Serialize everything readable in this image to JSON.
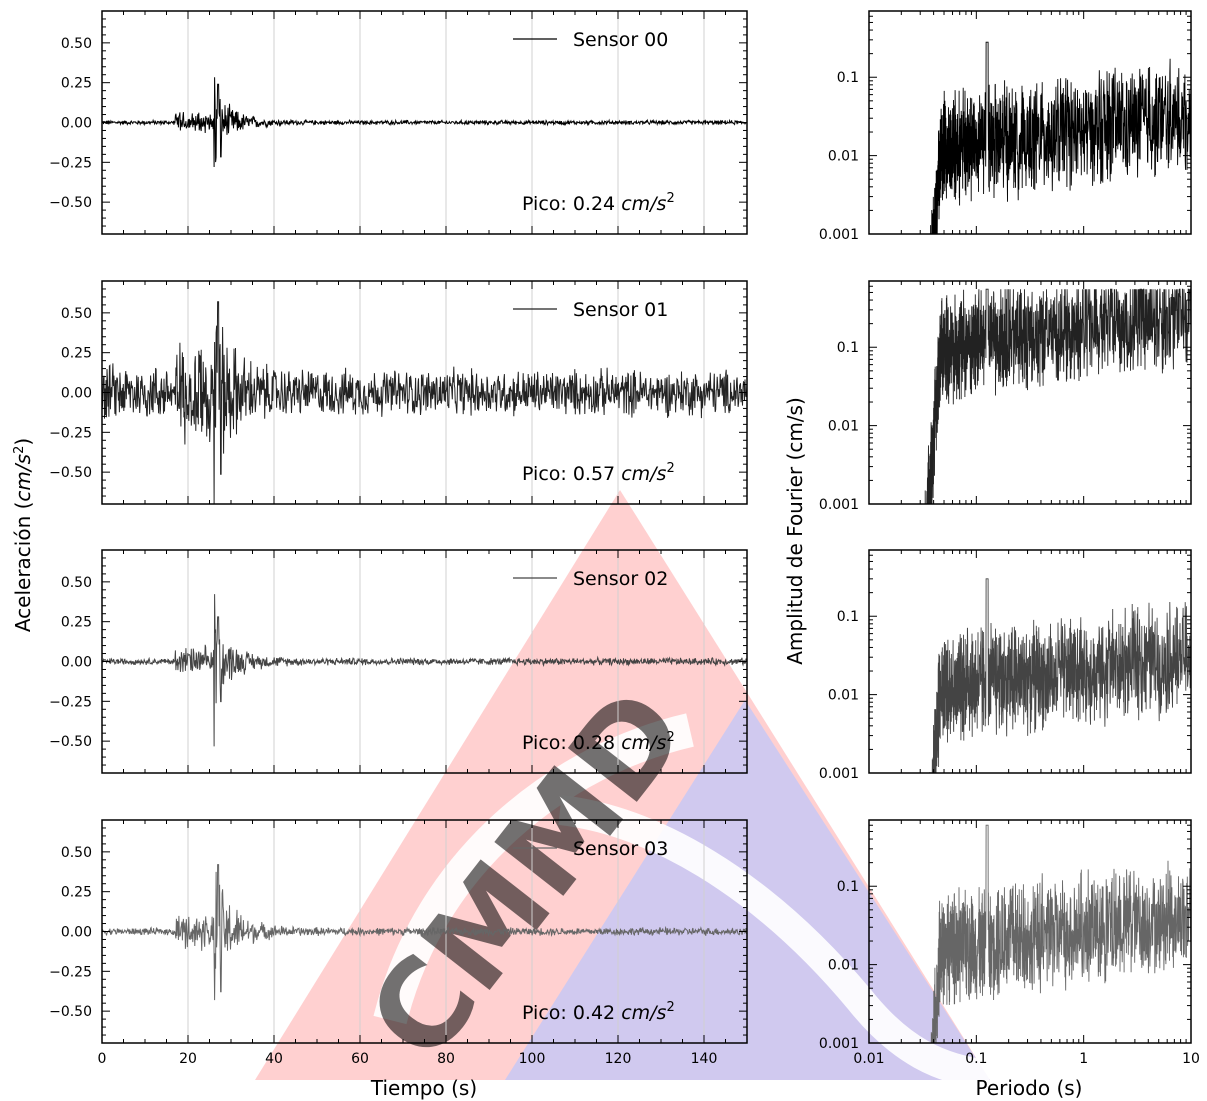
{
  "figure": {
    "ylabel_time": "Aceleración (cm/s²)",
    "ylabel_time_prefix": "Aceleración (",
    "ylabel_time_units": "cm/s",
    "ylabel_time_exp": "2",
    "ylabel_time_suffix": ")",
    "xlabel_time": "Tiempo (s)",
    "ylabel_fourier": "Amplitud de Fourier (cm/s)",
    "xlabel_fourier": "Periodo (s)",
    "peak_prefix": "Pico: ",
    "peak_units": "cm/s",
    "peak_exp": "2",
    "watermark": "CMMD"
  },
  "chart_data": [
    {
      "type": "line",
      "panel": "time-history",
      "series": [
        {
          "name": "Sensor 00",
          "peak_label": "0.24",
          "peak": 0.24,
          "pre_amp": 0.012,
          "event_amp": 0.16,
          "coda_amp": 0.012,
          "color": "#000000"
        },
        {
          "name": "Sensor 01",
          "peak_label": "0.57",
          "peak": 0.57,
          "pre_amp": 0.16,
          "event_amp": 0.45,
          "coda_amp": 0.13,
          "color": "#222222"
        },
        {
          "name": "Sensor 02",
          "peak_label": "0.28",
          "peak": 0.28,
          "pre_amp": 0.018,
          "event_amp": 0.2,
          "coda_amp": 0.02,
          "color": "#444444"
        },
        {
          "name": "Sensor 03",
          "peak_label": "0.42",
          "peak": 0.42,
          "pre_amp": 0.02,
          "event_amp": 0.3,
          "coda_amp": 0.022,
          "color": "#666666"
        }
      ],
      "xlabel": "Tiempo (s)",
      "ylabel": "Aceleración (cm/s²)",
      "xlim": [
        0,
        150
      ],
      "ylim": [
        -0.7,
        0.7
      ],
      "xticks": [
        0,
        20,
        40,
        60,
        80,
        100,
        120,
        140
      ],
      "xtick_labels": [
        "0",
        "20",
        "40",
        "60",
        "80",
        "100",
        "120",
        "140"
      ],
      "yticks": [
        0.5,
        0.25,
        0,
        -0.25,
        -0.5
      ],
      "ytick_labels": [
        "0.50",
        "0.25",
        "0.00",
        "−0.25",
        "−0.50"
      ],
      "event_onset_s": 17,
      "strong_motion_s": 26,
      "grid": "vertical",
      "legend": "top-right"
    },
    {
      "type": "line",
      "panel": "fourier-spectrum",
      "series": [
        {
          "name": "Sensor 00",
          "level": 0.03,
          "max": 0.28,
          "color": "#000000"
        },
        {
          "name": "Sensor 01",
          "level": 0.25,
          "max": 0.55,
          "color": "#222222"
        },
        {
          "name": "Sensor 02",
          "level": 0.03,
          "max": 0.3,
          "color": "#444444"
        },
        {
          "name": "Sensor 03",
          "level": 0.04,
          "max": 0.6,
          "color": "#666666"
        }
      ],
      "xlabel": "Periodo (s)",
      "ylabel": "Amplitud de Fourier (cm/s)",
      "xscale": "log",
      "yscale": "log",
      "xlim": [
        0.01,
        10
      ],
      "ylim": [
        0.001,
        0.7
      ],
      "xticks": [
        0.01,
        0.1,
        1,
        10
      ],
      "xtick_labels": [
        "0.01",
        "0.1",
        "1",
        "10"
      ],
      "yticks": [
        0.1,
        0.01,
        0.001
      ],
      "ytick_labels": [
        "0.1",
        "0.01",
        "0.001"
      ],
      "cutoff_period_s": 0.035
    }
  ]
}
